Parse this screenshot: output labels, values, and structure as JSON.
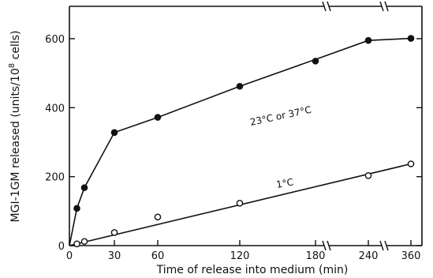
{
  "chart_data": {
    "type": "line",
    "title": "",
    "xlabel": "Time of release into medium (min)",
    "ylabel": "MGI-1GM released (units/10^8 cells)",
    "ylabel_main": "MGI-1GM released (units/10",
    "ylabel_sup": "8",
    "ylabel_tail": " cells)",
    "x_ticks": [
      0,
      30,
      60,
      120,
      180,
      240,
      360
    ],
    "x_tick_labels": [
      "0",
      "30",
      "60",
      "120",
      "180",
      "240",
      "360"
    ],
    "x_axis_breaks_between": [
      [
        180,
        240
      ],
      [
        240,
        360
      ]
    ],
    "y_ticks": [
      0,
      200,
      400,
      600
    ],
    "y_tick_labels": [
      "0",
      "200",
      "400",
      "600"
    ],
    "xlim": [
      0,
      360
    ],
    "ylim": [
      0,
      640
    ],
    "grid": false,
    "legend": "none",
    "series": [
      {
        "label": "23°C or 37°C",
        "marker": "filled-circle",
        "x": [
          0,
          5,
          10,
          30,
          60,
          120,
          180,
          240,
          360
        ],
        "y": [
          0,
          108,
          168,
          328,
          372,
          462,
          535,
          595,
          601
        ],
        "line_x": [
          0,
          5,
          10,
          30,
          60,
          120,
          180,
          240,
          360
        ],
        "line_y": [
          0,
          108,
          168,
          328,
          372,
          462,
          540,
          595,
          601
        ]
      },
      {
        "label": "1°C",
        "marker": "open-circle",
        "x": [
          0,
          5,
          10,
          30,
          60,
          120,
          240,
          360
        ],
        "y": [
          0,
          5,
          12,
          38,
          83,
          123,
          203,
          237
        ],
        "line_x": [
          0,
          360
        ],
        "line_y": [
          0,
          237
        ]
      }
    ]
  }
}
